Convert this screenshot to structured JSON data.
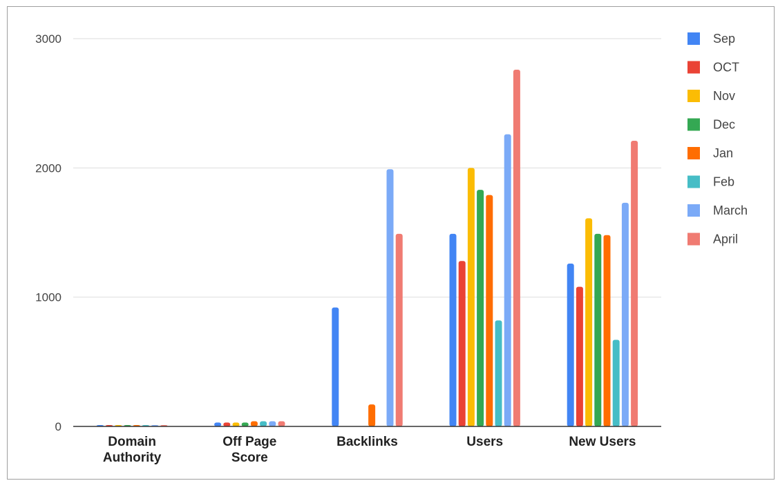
{
  "chart_data": {
    "type": "bar",
    "categories": [
      [
        "Domain",
        "Authority"
      ],
      [
        "Off Page",
        "Score"
      ],
      [
        "Backlinks"
      ],
      [
        "Users"
      ],
      [
        "New Users"
      ]
    ],
    "series": [
      {
        "name": "Sep",
        "color": "#4285f4",
        "values": [
          10,
          30,
          920,
          1490,
          1260
        ]
      },
      {
        "name": "OCT",
        "color": "#ea4335",
        "values": [
          10,
          30,
          0,
          1280,
          1080
        ]
      },
      {
        "name": "Nov",
        "color": "#fbbc04",
        "values": [
          10,
          30,
          0,
          2000,
          1610
        ]
      },
      {
        "name": "Dec",
        "color": "#34a853",
        "values": [
          10,
          30,
          0,
          1830,
          1490
        ]
      },
      {
        "name": "Jan",
        "color": "#ff6d01",
        "values": [
          10,
          40,
          170,
          1790,
          1480
        ]
      },
      {
        "name": "Feb",
        "color": "#46bdc6",
        "values": [
          10,
          40,
          0,
          820,
          670
        ]
      },
      {
        "name": "March",
        "color": "#7baaf7",
        "values": [
          10,
          40,
          1990,
          2260,
          1730
        ]
      },
      {
        "name": "April",
        "color": "#f07b72",
        "values": [
          10,
          40,
          1490,
          2760,
          2210
        ]
      }
    ],
    "yticks": [
      "0",
      "1000",
      "2000",
      "3000"
    ],
    "ylim": [
      0,
      3000
    ],
    "grid": true,
    "legend_position": "right"
  }
}
